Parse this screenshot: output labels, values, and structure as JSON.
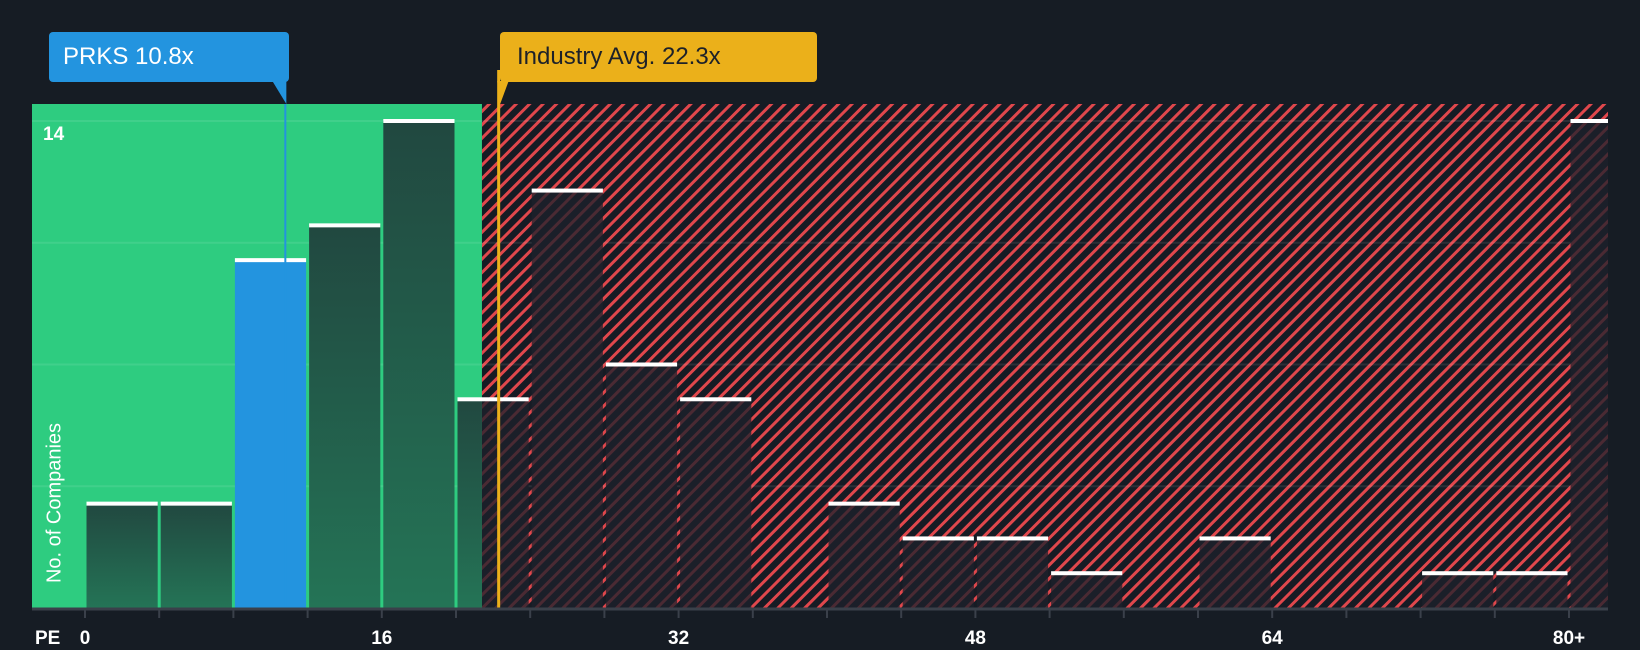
{
  "chart_data": {
    "type": "bar",
    "title": "",
    "xlabel": "PE",
    "ylabel": "No. of Companies",
    "x_tick_labels": [
      "0",
      "16",
      "32",
      "48",
      "64",
      "80+"
    ],
    "y_tick_labels": [
      "14"
    ],
    "ylim": [
      0,
      14
    ],
    "xlim": [
      0,
      82
    ],
    "grid": true,
    "bin_width": 4,
    "categories": [
      "0-4",
      "4-8",
      "8-12",
      "12-16",
      "16-20",
      "20-24",
      "24-28",
      "28-32",
      "32-36",
      "36-40",
      "40-44",
      "44-48",
      "48-52",
      "52-56",
      "56-60",
      "60-64",
      "64-68",
      "68-72",
      "72-76",
      "76-80",
      "80+"
    ],
    "bin_starts": [
      0,
      4,
      8,
      12,
      16,
      20,
      24,
      28,
      32,
      36,
      40,
      44,
      48,
      52,
      56,
      60,
      64,
      68,
      72,
      76,
      80
    ],
    "values": [
      3,
      3,
      10,
      11,
      14,
      6,
      12,
      7,
      6,
      0,
      3,
      2,
      2,
      1,
      0,
      2,
      0,
      0,
      1,
      1,
      14
    ],
    "highlight_bin": "8-12",
    "annotations": [
      {
        "label": "PRKS 10.8x",
        "value": 10.8,
        "color": "#2394df"
      },
      {
        "label": "Industry Avg. 22.3x",
        "value": 22.3,
        "color": "#ebb01a"
      }
    ],
    "regions": [
      {
        "name": "fair-value",
        "from": 0,
        "to": 21.4,
        "color": "#2ecc80"
      },
      {
        "name": "overvalued",
        "from": 21.4,
        "to": 82,
        "color": "#e0474c",
        "pattern": "diagonal-hatch"
      }
    ]
  },
  "callouts": {
    "company": "PRKS 10.8x",
    "industry": "Industry Avg. 22.3x"
  },
  "axis": {
    "y_label": "No. of Companies",
    "y_max_label": "14",
    "x_prefix": "PE",
    "x_labels": [
      {
        "text": "0",
        "value": 0
      },
      {
        "text": "16",
        "value": 16
      },
      {
        "text": "32",
        "value": 32
      },
      {
        "text": "48",
        "value": 48
      },
      {
        "text": "64",
        "value": 64
      },
      {
        "text": "80+",
        "value": 80
      }
    ]
  },
  "colors": {
    "background": "#161c24",
    "green_region": "#2ecc80",
    "highlight_bar": "#2394df",
    "industry_line": "#ebb01a",
    "hatch": "#e0474c",
    "bar_cap": "#ffffff"
  }
}
